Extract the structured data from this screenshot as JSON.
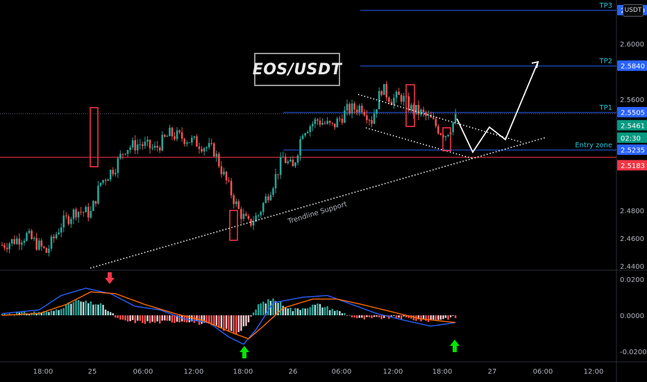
{
  "title": "EOS/USDT",
  "currency_button": "USDT",
  "colors": {
    "bull": "#26a69a",
    "bear": "#ef5350",
    "level_blue": "#2962ff",
    "support_red": "#f23645",
    "tag_blue": "#2962ff",
    "tag_price": "#089981",
    "tag_red": "#f23645",
    "macd": "#2962ff",
    "signal": "#ff6d00",
    "arrow_down": "#f23645",
    "arrow_up": "#00e600",
    "entry_zone_text": "#26c6da"
  },
  "levels": {
    "tp3": {
      "label": "TP3",
      "price": "2.6240"
    },
    "tp2": {
      "label": "TP2",
      "price": "2.5840"
    },
    "tp1": {
      "label": "TP1",
      "price": "2.5505"
    },
    "last_price": {
      "price": "2.5461",
      "countdown": "02:30"
    },
    "entry": {
      "label": "Entry zone",
      "price": "2.5235"
    },
    "support": {
      "price": "2.5183"
    }
  },
  "annotations": {
    "trendline": "Trendline Support"
  },
  "price_axis": [
    "2.6000",
    "2.5600",
    "2.4800",
    "2.4600",
    "2.4400"
  ],
  "macd_axis": [
    "0.0200",
    "0.0000",
    "-0.0200"
  ],
  "time_axis": [
    "18:00",
    "25",
    "06:00",
    "12:00",
    "18:00",
    "26",
    "06:00",
    "12:00",
    "18:00",
    "27",
    "06:00",
    "12:00"
  ],
  "chart_data": {
    "type": "candlestick",
    "title": "EOS/USDT",
    "x_ticks": [
      "18:00",
      "25",
      "06:00",
      "12:00",
      "18:00",
      "26",
      "06:00",
      "12:00",
      "18:00",
      "27",
      "06:00",
      "12:00"
    ],
    "y_range": [
      2.435,
      2.632
    ],
    "anchors": [
      [
        0,
        2.455
      ],
      [
        10,
        2.462
      ],
      [
        18,
        2.45
      ],
      [
        24,
        2.47
      ],
      [
        30,
        2.48
      ],
      [
        36,
        2.478
      ],
      [
        40,
        2.5
      ],
      [
        46,
        2.512
      ],
      [
        50,
        2.525
      ],
      [
        56,
        2.528
      ],
      [
        62,
        2.524
      ],
      [
        68,
        2.535
      ],
      [
        74,
        2.532
      ],
      [
        80,
        2.528
      ],
      [
        86,
        2.523
      ],
      [
        90,
        2.505
      ],
      [
        96,
        2.48
      ],
      [
        100,
        2.47
      ],
      [
        104,
        2.477
      ],
      [
        110,
        2.5
      ],
      [
        114,
        2.518
      ],
      [
        118,
        2.51
      ],
      [
        122,
        2.538
      ],
      [
        128,
        2.545
      ],
      [
        134,
        2.54
      ],
      [
        140,
        2.552
      ],
      [
        146,
        2.555
      ],
      [
        150,
        2.545
      ],
      [
        154,
        2.568
      ],
      [
        158,
        2.56
      ],
      [
        162,
        2.562
      ],
      [
        166,
        2.553
      ],
      [
        170,
        2.55
      ],
      [
        174,
        2.545
      ],
      [
        178,
        2.537
      ],
      [
        180,
        2.535
      ],
      [
        184,
        2.546
      ]
    ],
    "levels": [
      {
        "name": "TP3",
        "value": 2.624
      },
      {
        "name": "TP2",
        "value": 2.584
      },
      {
        "name": "TP1",
        "value": 2.5505
      },
      {
        "name": "Last",
        "value": 2.5461
      },
      {
        "name": "Entry zone",
        "value": 2.5235
      },
      {
        "name": "Support",
        "value": 2.5183
      }
    ],
    "projection": [
      [
        2.546,
        0
      ],
      [
        2.522,
        8
      ],
      [
        2.54,
        16
      ],
      [
        2.531,
        24
      ],
      [
        2.587,
        36
      ]
    ],
    "macd_range": [
      -0.024,
      0.024
    ]
  }
}
